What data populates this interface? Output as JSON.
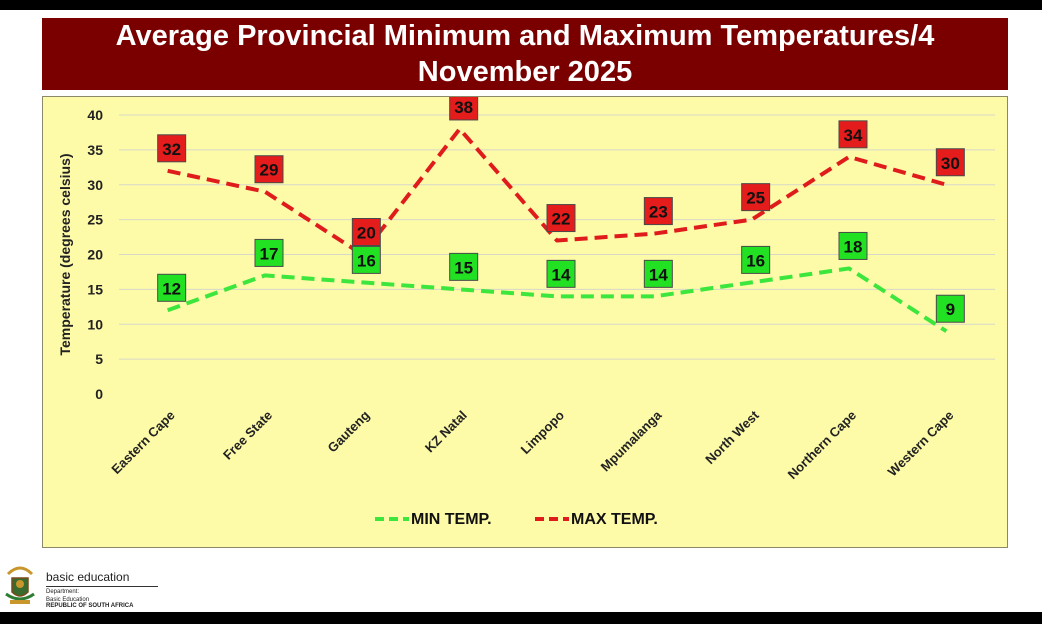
{
  "header": {
    "title": "Average Provincial Minimum and Maximum Temperatures/4 November 2025"
  },
  "chart_data": {
    "type": "line",
    "title": "Average Provincial Minimum and Maximum Temperatures/4 November 2025",
    "xlabel": "",
    "ylabel": "Temperature (degrees celsius)",
    "ylim": [
      0,
      40
    ],
    "yticks": [
      0,
      5,
      10,
      15,
      20,
      25,
      30,
      35,
      40
    ],
    "grid": true,
    "legend_position": "bottom",
    "categories": [
      "Eastern Cape",
      "Free State",
      "Gauteng",
      "KZ Natal",
      "Limpopo",
      "Mpumalanga",
      "North West",
      "Northern Cape",
      "Western Cape"
    ],
    "series": [
      {
        "name": "MIN TEMP.",
        "values": [
          12,
          17,
          16,
          15,
          14,
          14,
          16,
          18,
          9
        ],
        "color": "#3ce63c",
        "label_color": "#22e022",
        "style": "dashed"
      },
      {
        "name": "MAX TEMP.",
        "values": [
          32,
          29,
          20,
          38,
          22,
          23,
          25,
          34,
          30
        ],
        "color": "#e01b1b",
        "label_color": "#e41c1c",
        "style": "dashed"
      }
    ]
  },
  "footer": {
    "org": "basic education",
    "line1": "Department:",
    "line2": "Basic Education",
    "line3": "REPUBLIC OF SOUTH AFRICA"
  }
}
